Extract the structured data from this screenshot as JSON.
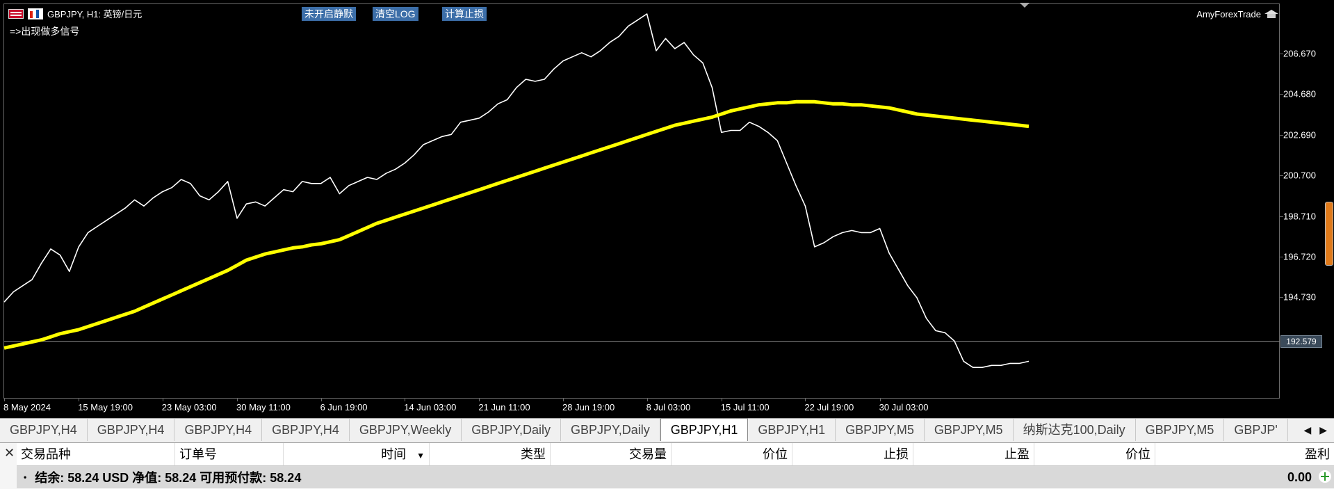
{
  "chart": {
    "title": "GBPJPY, H1:  英镑/日元",
    "signal_text": "=>出现做多信号",
    "buttons": [
      "未开启静默",
      "清空LOG",
      "计算止损"
    ],
    "brand": "AmyForexTrade",
    "current_price": "192.579",
    "colors": {
      "price_line": "#ffffff",
      "ma_line": "#ffff00",
      "background": "#000000",
      "button": "#3c6ea8"
    },
    "icons": [
      "flag-icon",
      "chart-icon",
      "graduation-cap-icon"
    ]
  },
  "chart_data": {
    "type": "line",
    "ylim": [
      190.9,
      208.6
    ],
    "yticks": [
      "206.670",
      "204.680",
      "202.690",
      "200.700",
      "198.710",
      "196.720",
      "194.730"
    ],
    "yticks_values": [
      206.67,
      204.68,
      202.69,
      200.7,
      198.71,
      196.72,
      194.73
    ],
    "xticks": [
      "8 May 2024",
      "15 May 19:00",
      "23 May 03:00",
      "30 May 11:00",
      "6 Jun 19:00",
      "14 Jun 03:00",
      "21 Jun 11:00",
      "28 Jun 19:00",
      "8 Jul 03:00",
      "15 Jul 11:00",
      "22 Jul 19:00",
      "30 Jul 03:00"
    ],
    "xticks_index": [
      0,
      8,
      17,
      25,
      34,
      43,
      51,
      60,
      69,
      77,
      86,
      94
    ],
    "series": [
      {
        "values": [
          194.5,
          195.0,
          195.3,
          195.6,
          196.4,
          197.1,
          196.8,
          196.0,
          197.2,
          197.9,
          198.2,
          198.5,
          198.8,
          199.1,
          199.5,
          199.2,
          199.6,
          199.9,
          200.1,
          200.5,
          200.3,
          199.7,
          199.5,
          199.9,
          200.4,
          198.6,
          199.3,
          199.4,
          199.2,
          199.6,
          200.0,
          199.9,
          200.4,
          200.3,
          200.3,
          200.6,
          199.8,
          200.2,
          200.4,
          200.6,
          200.5,
          200.8,
          201.0,
          201.3,
          201.7,
          202.2,
          202.4,
          202.6,
          202.7,
          203.3,
          203.4,
          203.5,
          203.8,
          204.2,
          204.4,
          205.0,
          205.4,
          205.3,
          205.4,
          205.9,
          206.3,
          206.5,
          206.7,
          206.5,
          206.8,
          207.2,
          207.5,
          208.0,
          208.3,
          208.6,
          206.8,
          207.4,
          206.9,
          207.2,
          206.6,
          206.2,
          205.0,
          202.8,
          202.9,
          202.9,
          203.3,
          203.1,
          202.8,
          202.4,
          201.3,
          200.2,
          199.2,
          197.2,
          197.4,
          197.7,
          197.9,
          198.0,
          197.9,
          197.9,
          198.1,
          196.9,
          196.1,
          195.3,
          194.7,
          193.7,
          193.1,
          193.0,
          192.6,
          191.6,
          191.3,
          191.3,
          191.4,
          191.4,
          191.5,
          191.5,
          191.6
        ],
        "color": "#ffffff"
      },
      {
        "values": [
          192.25,
          192.35,
          192.45,
          192.55,
          192.65,
          192.8,
          192.95,
          193.05,
          193.15,
          193.3,
          193.45,
          193.6,
          193.75,
          193.9,
          194.05,
          194.25,
          194.45,
          194.65,
          194.85,
          195.05,
          195.25,
          195.45,
          195.65,
          195.85,
          196.05,
          196.3,
          196.55,
          196.7,
          196.85,
          196.95,
          197.05,
          197.15,
          197.2,
          197.3,
          197.35,
          197.45,
          197.55,
          197.75,
          197.95,
          198.15,
          198.35,
          198.5,
          198.65,
          198.8,
          198.95,
          199.1,
          199.25,
          199.4,
          199.55,
          199.7,
          199.85,
          200.0,
          200.15,
          200.3,
          200.45,
          200.6,
          200.75,
          200.9,
          201.05,
          201.2,
          201.35,
          201.5,
          201.65,
          201.8,
          201.95,
          202.1,
          202.25,
          202.4,
          202.55,
          202.7,
          202.85,
          203.0,
          203.15,
          203.25,
          203.35,
          203.45,
          203.55,
          203.7,
          203.85,
          203.95,
          204.05,
          204.15,
          204.2,
          204.25,
          204.25,
          204.3,
          204.3,
          204.3,
          204.25,
          204.2,
          204.2,
          204.15,
          204.15,
          204.1,
          204.05,
          204.0,
          203.9,
          203.8,
          203.7,
          203.65,
          203.6,
          203.55,
          203.5,
          203.45,
          203.4,
          203.35,
          203.3,
          203.25,
          203.2,
          203.15,
          203.1
        ],
        "color": "#ffff00"
      }
    ]
  },
  "tabs": {
    "items": [
      "GBPJPY,H4",
      "GBPJPY,H4",
      "GBPJPY,H4",
      "GBPJPY,H4",
      "GBPJPY,Weekly",
      "GBPJPY,Daily",
      "GBPJPY,Daily",
      "GBPJPY,H1",
      "GBPJPY,H1",
      "GBPJPY,M5",
      "GBPJPY,M5",
      "纳斯达克100,Daily",
      "GBPJPY,M5",
      "GBPJP'"
    ],
    "active_index": 7
  },
  "terminal": {
    "columns": [
      "交易品种",
      "订单号",
      "时间",
      "类型",
      "交易量",
      "价位",
      "止损",
      "止盈",
      "价位",
      "盈利"
    ],
    "balance_text": "结余: 58.24 USD  净值: 58.24  可用预付款: 58.24",
    "profit": "0.00"
  }
}
